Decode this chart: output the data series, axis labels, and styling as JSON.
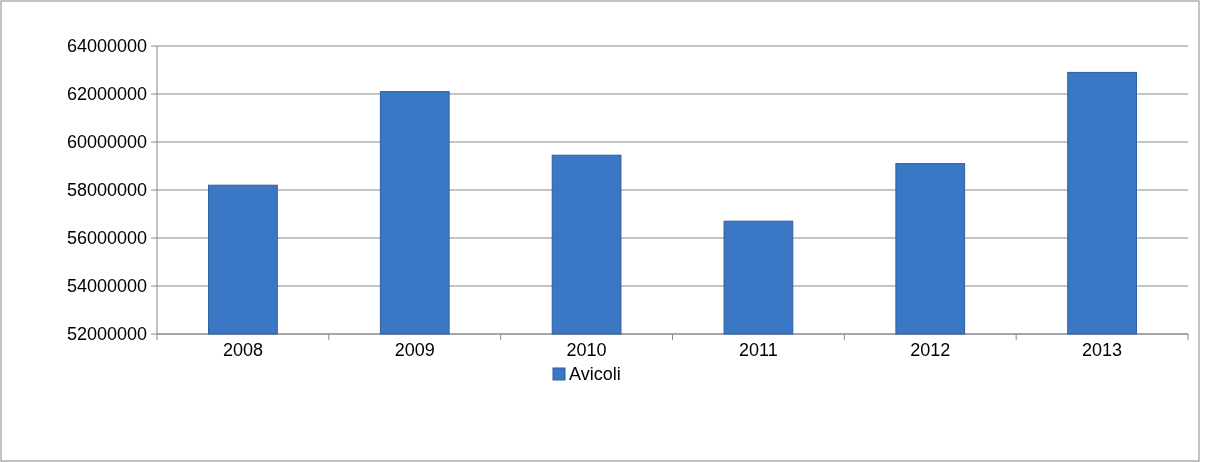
{
  "chart_data": {
    "type": "bar",
    "categories": [
      "2008",
      "2009",
      "2010",
      "2011",
      "2012",
      "2013"
    ],
    "series": [
      {
        "name": "Avicoli",
        "color": "#3a78c6",
        "values": [
          58200000,
          62100000,
          59450000,
          56700000,
          59100000,
          62900000
        ]
      }
    ],
    "ylim": [
      52000000,
      64000000
    ],
    "yticks": [
      52000000,
      54000000,
      56000000,
      58000000,
      60000000,
      62000000,
      64000000
    ],
    "grid": "y",
    "legend": "bottom"
  }
}
